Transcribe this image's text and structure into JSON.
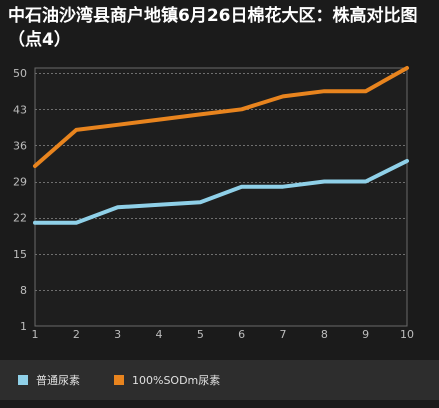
{
  "chart_data": {
    "type": "line",
    "title": "中石油沙湾县商户地镇6月26日棉花大区：株高对比图（点4）",
    "x": [
      1,
      2,
      3,
      4,
      5,
      6,
      7,
      8,
      9,
      10
    ],
    "y_ticks": [
      1,
      8,
      15,
      22,
      29,
      36,
      43,
      50
    ],
    "ylim": [
      1,
      51
    ],
    "xlabel": "",
    "ylabel": "",
    "grid": true,
    "legend_position": "bottom",
    "series": [
      {
        "name": "普通尿素",
        "color": "#8fd0e8",
        "values": [
          21,
          21,
          24,
          24.5,
          25,
          28,
          28,
          29,
          29,
          33
        ]
      },
      {
        "name": "100%SODm尿素",
        "color": "#e8841e",
        "values": [
          32,
          39,
          40,
          41,
          42,
          43,
          45.5,
          46.5,
          46.5,
          51
        ]
      }
    ]
  }
}
